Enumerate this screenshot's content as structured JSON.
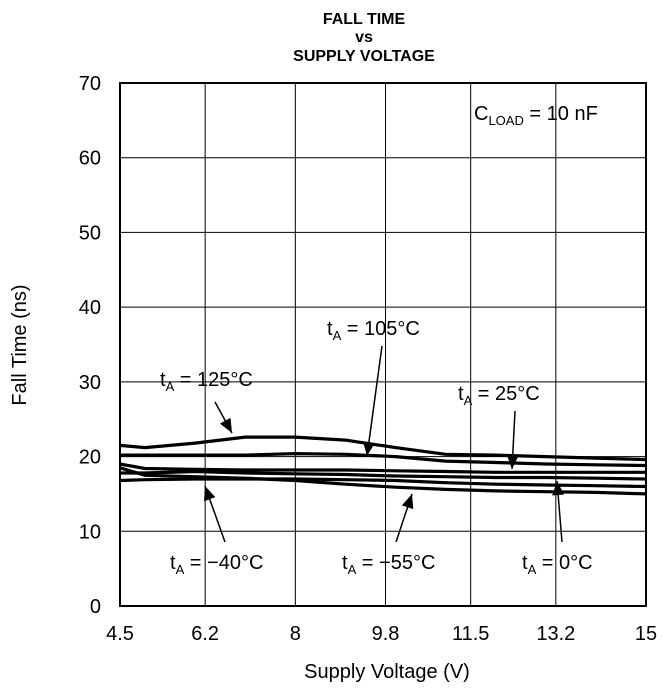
{
  "chart_data": {
    "type": "line",
    "title_lines": [
      "FALL TIME",
      "vs",
      "SUPPLY VOLTAGE"
    ],
    "xlabel": "Supply Voltage (V)",
    "ylabel": "Fall Time (ns)",
    "xlim": [
      4.5,
      15
    ],
    "ylim": [
      0,
      70
    ],
    "x_ticks": [
      4.5,
      6.2,
      8,
      9.8,
      11.5,
      13.2,
      15
    ],
    "x_tick_labels": [
      "4.5",
      "6.2",
      "8",
      "9.8",
      "11.5",
      "13.2",
      "15"
    ],
    "y_ticks": [
      0,
      10,
      20,
      30,
      40,
      50,
      60,
      70
    ],
    "y_tick_labels": [
      "0",
      "10",
      "20",
      "30",
      "40",
      "50",
      "60",
      "70"
    ],
    "grid": true,
    "condition": {
      "main": "C",
      "sub": "LOAD",
      "rest": " = 10 nF"
    },
    "series": [
      {
        "name": "t_A = 125°C",
        "x": [
          4.5,
          5,
          6,
          7,
          8,
          9,
          10,
          11,
          12,
          13,
          14,
          15
        ],
        "values": [
          21.5,
          21.2,
          21.8,
          22.6,
          22.6,
          22.2,
          21.2,
          20.3,
          20.2,
          20.0,
          19.8,
          19.6
        ]
      },
      {
        "name": "t_A = 105°C",
        "x": [
          4.5,
          5,
          6,
          7,
          8,
          9,
          10,
          11,
          12,
          13,
          14,
          15
        ],
        "values": [
          20.2,
          20.2,
          20.2,
          20.2,
          20.4,
          20.3,
          20.0,
          19.4,
          19.2,
          19.0,
          18.9,
          18.8
        ]
      },
      {
        "name": "t_A = 25°C",
        "x": [
          4.5,
          5,
          6,
          7,
          8,
          9,
          10,
          11,
          12,
          13,
          14,
          15
        ],
        "values": [
          19.0,
          18.4,
          18.3,
          18.2,
          18.2,
          18.2,
          18.1,
          18.0,
          17.9,
          17.9,
          17.9,
          17.9
        ]
      },
      {
        "name": "t_A = 0°C",
        "x": [
          4.5,
          5,
          6,
          7,
          8,
          9,
          10,
          11,
          12,
          13,
          14,
          15
        ],
        "values": [
          17.8,
          17.8,
          18.0,
          17.8,
          17.7,
          17.6,
          17.4,
          17.3,
          17.2,
          17.2,
          17.1,
          17.0
        ]
      },
      {
        "name": "t_A = −40°C",
        "x": [
          4.5,
          5,
          6,
          7,
          8,
          9,
          10,
          11,
          12,
          13,
          14,
          15
        ],
        "values": [
          16.8,
          16.9,
          17.0,
          17.0,
          17.0,
          16.9,
          16.8,
          16.5,
          16.3,
          16.2,
          16.1,
          16.0
        ]
      },
      {
        "name": "t_A = −55°C",
        "x": [
          4.5,
          5,
          6,
          7,
          8,
          9,
          10,
          11,
          12,
          13,
          14,
          15
        ],
        "values": [
          18.5,
          17.5,
          17.3,
          17.1,
          16.8,
          16.3,
          15.9,
          15.6,
          15.4,
          15.3,
          15.2,
          15.0
        ]
      }
    ],
    "annotations": [
      {
        "series": "t_A = 125°C",
        "main": "t",
        "sub": "A",
        "rest": " = 125°C"
      },
      {
        "series": "t_A = 105°C",
        "main": "t",
        "sub": "A",
        "rest": " = 105°C"
      },
      {
        "series": "t_A = 25°C",
        "main": "t",
        "sub": "A",
        "rest": " = 25°C"
      },
      {
        "series": "t_A = −40°C",
        "main": "t",
        "sub": "A",
        "rest": " = −40°C"
      },
      {
        "series": "t_A = −55°C",
        "main": "t",
        "sub": "A",
        "rest": " = −55°C"
      },
      {
        "series": "t_A = 0°C",
        "main": "t",
        "sub": "A",
        "rest": " = 0°C"
      }
    ]
  }
}
